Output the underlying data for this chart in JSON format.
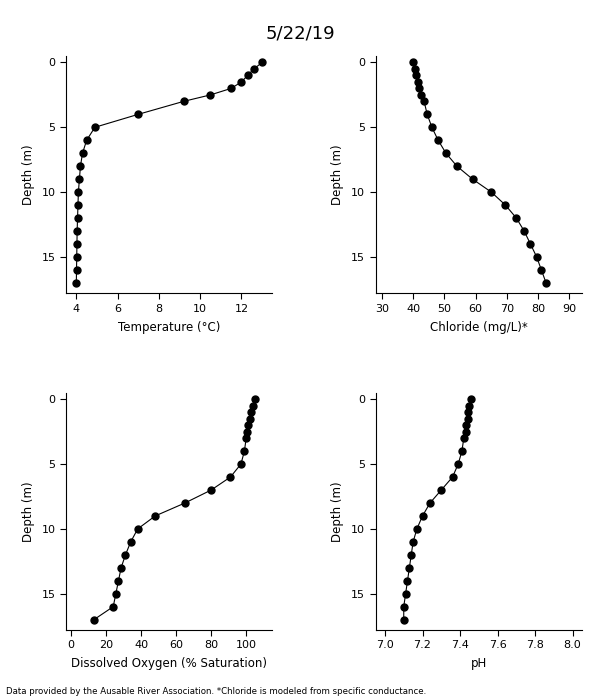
{
  "title": "5/22/19",
  "footnote": "Data provided by the Ausable River Association. *Chloride is modeled from specific conductance.",
  "temp": {
    "depth": [
      0,
      0.5,
      1,
      1.5,
      2,
      2.5,
      3,
      4,
      5,
      6,
      7,
      8,
      9,
      10,
      11,
      12,
      13,
      14,
      15,
      16,
      17
    ],
    "values": [
      13.0,
      12.6,
      12.3,
      12.0,
      11.5,
      10.5,
      9.2,
      7.0,
      4.9,
      4.5,
      4.3,
      4.2,
      4.15,
      4.1,
      4.08,
      4.06,
      4.04,
      4.03,
      4.02,
      4.01,
      4.0
    ],
    "xlabel": "Temperature (°C)",
    "xlim": [
      3.5,
      13.5
    ],
    "xticks": [
      4,
      6,
      8,
      10,
      12
    ]
  },
  "chloride": {
    "depth": [
      0,
      0.5,
      1,
      1.5,
      2,
      2.5,
      3,
      4,
      5,
      6,
      7,
      8,
      9,
      10,
      11,
      12,
      13,
      14,
      15,
      16,
      17
    ],
    "values": [
      40.0,
      40.5,
      41.0,
      41.5,
      42.0,
      42.5,
      43.5,
      44.5,
      46.0,
      48.0,
      50.5,
      54.0,
      59.0,
      65.0,
      69.5,
      73.0,
      75.5,
      77.5,
      79.5,
      81.0,
      82.5
    ],
    "xlabel": "Chloride (mg/L)*",
    "xlim": [
      28,
      94
    ],
    "xticks": [
      30,
      40,
      50,
      60,
      70,
      80,
      90
    ]
  },
  "do": {
    "depth": [
      0,
      0.5,
      1,
      1.5,
      2,
      2.5,
      3,
      4,
      5,
      6,
      7,
      8,
      9,
      10,
      11,
      12,
      13,
      14,
      15,
      16,
      17
    ],
    "values": [
      105.0,
      104.0,
      103.0,
      102.0,
      101.0,
      100.5,
      100.0,
      99.0,
      97.0,
      91.0,
      80.0,
      65.0,
      48.0,
      38.0,
      34.0,
      31.0,
      28.5,
      27.0,
      25.5,
      24.0,
      13.0
    ],
    "xlabel": "Dissolved Oxygen (% Saturation)",
    "xlim": [
      -3,
      115
    ],
    "xticks": [
      0,
      20,
      40,
      60,
      80,
      100
    ]
  },
  "ph": {
    "depth": [
      0,
      0.5,
      1,
      1.5,
      2,
      2.5,
      3,
      4,
      5,
      6,
      7,
      8,
      9,
      10,
      11,
      12,
      13,
      14,
      15,
      16,
      17
    ],
    "values": [
      7.46,
      7.45,
      7.44,
      7.44,
      7.43,
      7.43,
      7.42,
      7.41,
      7.39,
      7.36,
      7.3,
      7.24,
      7.2,
      7.17,
      7.15,
      7.14,
      7.13,
      7.12,
      7.11,
      7.1,
      7.1
    ],
    "xlabel": "pH",
    "xlim": [
      6.95,
      8.05
    ],
    "xticks": [
      7.0,
      7.2,
      7.4,
      7.6,
      7.8,
      8.0
    ]
  },
  "depth_ylim": [
    17.8,
    -0.5
  ],
  "yticks": [
    0,
    5,
    10,
    15
  ],
  "ylabel": "Depth (m)",
  "line_color": "#000000",
  "marker": "o",
  "markersize": 5,
  "linewidth": 0.8
}
